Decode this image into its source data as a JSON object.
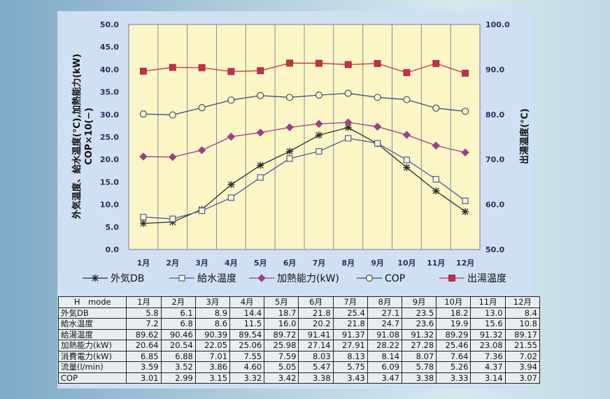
{
  "chart_data": {
    "type": "line",
    "categories": [
      "1月",
      "2月",
      "3月",
      "4月",
      "5月",
      "6月",
      "7月",
      "8月",
      "9月",
      "10月",
      "11月",
      "12月"
    ],
    "y_left": {
      "label": "外気温度、給水温度(℃),加熱能力(kW)\nCOP×10(−)",
      "ylim": [
        0,
        50
      ],
      "ticks": [
        "0.0",
        "5.0",
        "10.0",
        "15.0",
        "20.0",
        "25.0",
        "30.0",
        "35.0",
        "40.0",
        "45.0",
        "50.0"
      ]
    },
    "y_right": {
      "label": "出湯温度(℃)",
      "ylim": [
        50,
        100
      ],
      "ticks": [
        "50.0",
        "60.0",
        "70.0",
        "80.0",
        "90.0",
        "100.0"
      ]
    },
    "grid": "vertical",
    "legend_position": "bottom",
    "series": [
      {
        "name": "外気DB",
        "axis": "left",
        "marker": "asterisk",
        "color": "#2b2b2b",
        "values": [
          5.8,
          6.1,
          8.9,
          14.4,
          18.7,
          21.8,
          25.4,
          27.1,
          23.5,
          18.2,
          13.0,
          8.4
        ]
      },
      {
        "name": "給水温度",
        "axis": "left",
        "marker": "square-open",
        "color": "#4a5f9a",
        "values": [
          7.2,
          6.8,
          8.6,
          11.5,
          16.0,
          20.2,
          21.8,
          24.7,
          23.6,
          19.9,
          15.6,
          10.8
        ]
      },
      {
        "name": "加熱能力(kW)",
        "axis": "left",
        "marker": "diamond",
        "color": "#9b3f86",
        "values": [
          20.64,
          20.54,
          22.05,
          25.06,
          25.98,
          27.14,
          27.91,
          28.22,
          27.28,
          25.46,
          23.08,
          21.55
        ]
      },
      {
        "name": "COP",
        "axis": "left",
        "marker": "circle-open",
        "color": "#3f4e74",
        "values": [
          30.1,
          29.9,
          31.5,
          33.2,
          34.2,
          33.8,
          34.3,
          34.7,
          33.8,
          33.3,
          31.4,
          30.7
        ]
      },
      {
        "name": "出湯温度",
        "axis": "right",
        "marker": "square-filled",
        "color": "#c7304a",
        "values": [
          89.62,
          90.46,
          90.39,
          89.54,
          89.72,
          91.41,
          91.37,
          91.08,
          91.32,
          89.29,
          91.32,
          89.17
        ]
      }
    ]
  },
  "table": {
    "header": [
      "H　mode",
      "1月",
      "2月",
      "3月",
      "4月",
      "5月",
      "6月",
      "7月",
      "8月",
      "9月",
      "10月",
      "11月",
      "12月"
    ],
    "rows": [
      [
        "外気DB",
        "5.8",
        "6.1",
        "8.9",
        "14.4",
        "18.7",
        "21.8",
        "25.4",
        "27.1",
        "23.5",
        "18.2",
        "13.0",
        "8.4"
      ],
      [
        "給水温度",
        "7.2",
        "6.8",
        "8.6",
        "11.5",
        "16.0",
        "20.2",
        "21.8",
        "24.7",
        "23.6",
        "19.9",
        "15.6",
        "10.8"
      ],
      [
        "給湯温度",
        "89.62",
        "90.46",
        "90.39",
        "89.54",
        "89.72",
        "91.41",
        "91.37",
        "91.08",
        "91.32",
        "89.29",
        "91.32",
        "89.17"
      ],
      [
        "加熱能力(kW)",
        "20.64",
        "20.54",
        "22.05",
        "25.06",
        "25.98",
        "27.14",
        "27.91",
        "28.22",
        "27.28",
        "25.46",
        "23.08",
        "21.55"
      ],
      [
        "消費電力(kW)",
        "6.85",
        "6.88",
        "7.01",
        "7.55",
        "7.59",
        "8.03",
        "8.13",
        "8.14",
        "8.07",
        "7.64",
        "7.36",
        "7.02"
      ],
      [
        "流量(l/min)",
        "3.59",
        "3.52",
        "3.86",
        "4.60",
        "5.05",
        "5.47",
        "5.75",
        "6.09",
        "5.78",
        "5.26",
        "4.37",
        "3.94"
      ],
      [
        "COP",
        "3.01",
        "2.99",
        "3.15",
        "3.32",
        "3.42",
        "3.38",
        "3.43",
        "3.47",
        "3.38",
        "3.33",
        "3.14",
        "3.07"
      ]
    ]
  },
  "colors": {
    "plot_background": "#fcf5c6",
    "panel_background": "#cfe0f2",
    "axis_text": "#24335a"
  }
}
